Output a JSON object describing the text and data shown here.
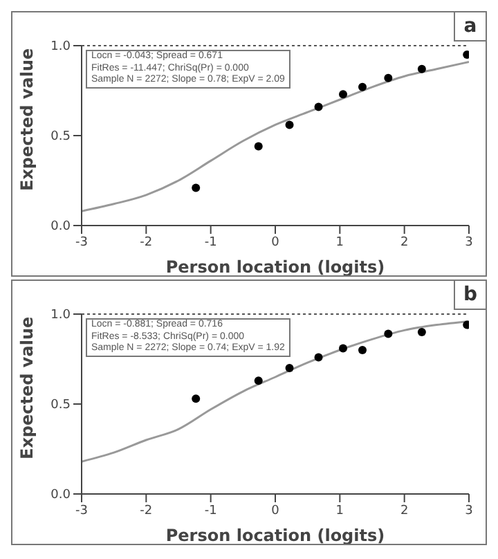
{
  "chart_data": [
    {
      "type": "scatter",
      "xlabel": "Person location (logits)",
      "ylabel": "Expected value",
      "annotations": [
        "Locn = -0.043; Spread = 0.671",
        "FitRes = -11.447; ChriSq(Pr) = 0.000",
        "Sample N = 2272; Slope = 0.78; ExpV = 2.09",
        "a"
      ],
      "xlim": [
        -3,
        3
      ],
      "xticks": [
        -3,
        -2,
        -1,
        0,
        1,
        2,
        3
      ],
      "ylim": [
        0,
        1
      ],
      "yticks": [
        {
          "value": 0,
          "label": "0.0"
        },
        {
          "value": 0.5,
          "label": "0.5"
        },
        {
          "value": 1,
          "label": "1.0"
        }
      ],
      "ref_lines": [
        {
          "axis": "y",
          "value": 1,
          "line_style": "dotted",
          "color": "#555555"
        }
      ],
      "series": [
        {
          "type": "line",
          "color": "#999999",
          "marker": "none",
          "line_style": "solid",
          "x": [
            -3,
            -2.5,
            -2,
            -1.5,
            -1,
            -0.5,
            0,
            0.5,
            1,
            1.5,
            2,
            2.5,
            3
          ],
          "values": [
            0.08,
            0.12,
            0.17,
            0.25,
            0.36,
            0.47,
            0.56,
            0.63,
            0.7,
            0.77,
            0.83,
            0.87,
            0.91
          ]
        },
        {
          "color": "#000000",
          "marker": "circle",
          "x": [
            -1.23,
            -0.26,
            0.22,
            0.67,
            1.05,
            1.35,
            1.75,
            2.27,
            2.97
          ],
          "values": [
            0.21,
            0.44,
            0.56,
            0.66,
            0.73,
            0.77,
            0.82,
            0.87,
            0.95
          ]
        }
      ]
    },
    {
      "type": "scatter",
      "xlabel": "Person location (logits)",
      "ylabel": "Expected value",
      "annotations": [
        "Locn = -0.881; Spread = 0.716",
        "FitRes = -8.533; ChriSq(Pr) = 0.000",
        "Sample N = 2272; Slope = 0.74; ExpV = 1.92",
        "b"
      ],
      "xlim": [
        -3,
        3
      ],
      "xticks": [
        -3,
        -2,
        -1,
        0,
        1,
        2,
        3
      ],
      "ylim": [
        0,
        1
      ],
      "yticks": [
        {
          "value": 0,
          "label": "0.0"
        },
        {
          "value": 0.5,
          "label": "0.5"
        },
        {
          "value": 1,
          "label": "1.0"
        }
      ],
      "ref_lines": [
        {
          "axis": "y",
          "value": 1,
          "line_style": "dotted",
          "color": "#555555"
        }
      ],
      "series": [
        {
          "type": "line",
          "color": "#999999",
          "marker": "none",
          "line_style": "solid",
          "x": [
            -3,
            -2.5,
            -2,
            -1.5,
            -1,
            -0.5,
            0,
            0.5,
            1,
            1.5,
            2,
            2.5,
            3
          ],
          "values": [
            0.18,
            0.23,
            0.3,
            0.36,
            0.47,
            0.57,
            0.65,
            0.73,
            0.8,
            0.86,
            0.91,
            0.94,
            0.96
          ]
        },
        {
          "color": "#000000",
          "marker": "circle",
          "x": [
            -1.23,
            -0.26,
            0.22,
            0.67,
            1.05,
            1.35,
            1.75,
            2.27,
            2.97
          ],
          "values": [
            0.53,
            0.63,
            0.7,
            0.76,
            0.81,
            0.8,
            0.89,
            0.9,
            0.94
          ]
        }
      ]
    }
  ]
}
